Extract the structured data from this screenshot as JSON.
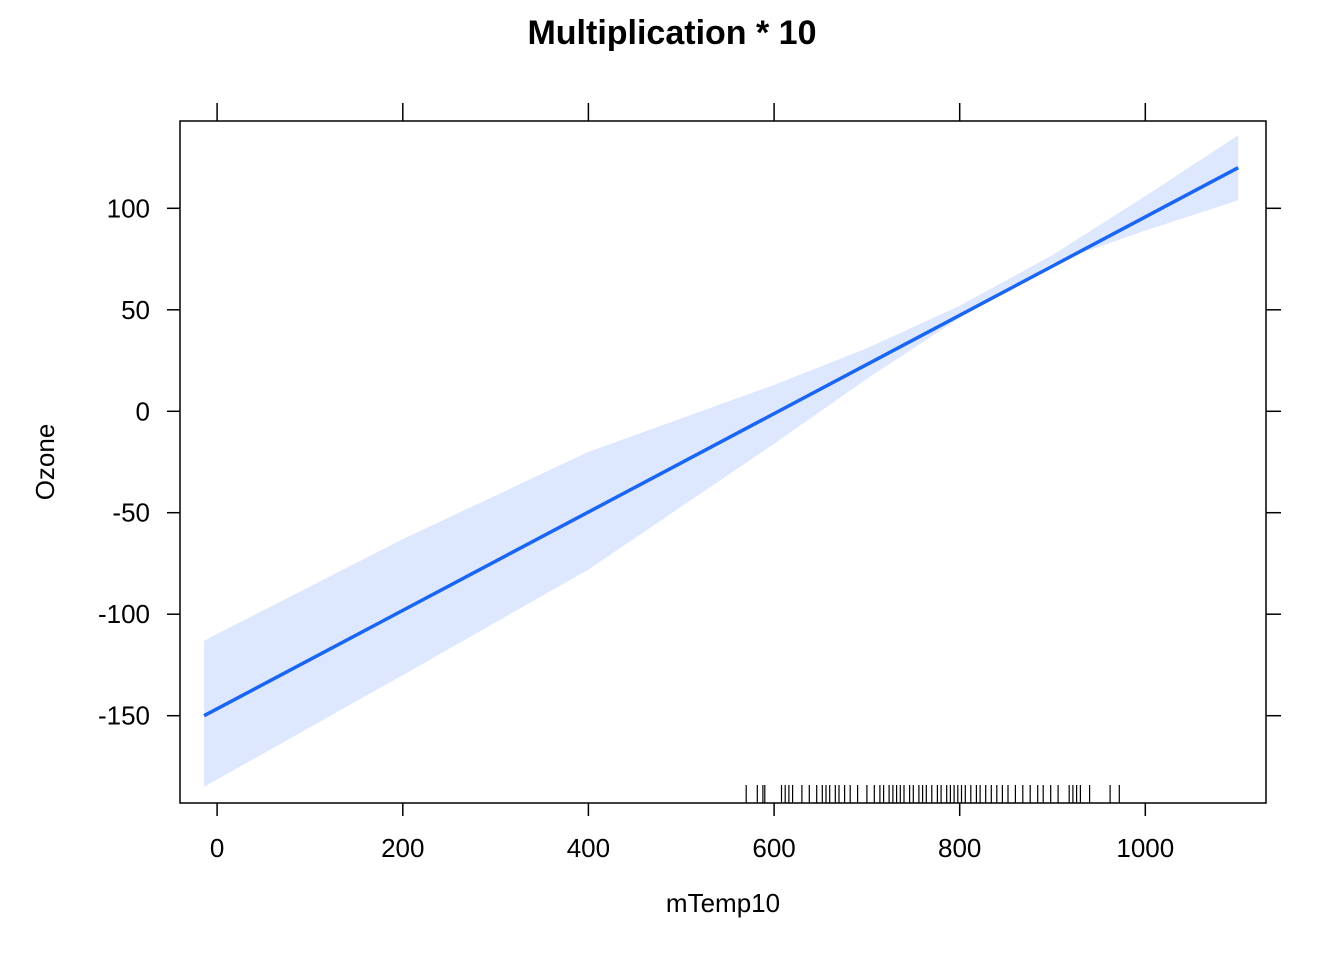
{
  "chart_data": {
    "type": "line",
    "title": "Multiplication * 10",
    "xlabel": "mTemp10",
    "ylabel": "Ozone",
    "xlim": [
      -40,
      1130
    ],
    "ylim": [
      -193,
      143
    ],
    "x_ticks": [
      0,
      200,
      400,
      600,
      800,
      1000
    ],
    "y_ticks": [
      -150,
      -100,
      -50,
      0,
      50,
      100
    ],
    "grid": false,
    "colors": {
      "line": "#1a66f2",
      "band": "#dde7fd",
      "axis": "#000000"
    },
    "series": [
      {
        "x": [
          -14,
          1100
        ],
        "y": [
          -150,
          120
        ]
      }
    ],
    "confidence_band": {
      "x": [
        -14,
        200,
        400,
        600,
        700,
        800,
        900,
        1000,
        1100
      ],
      "lower": [
        -185,
        -130,
        -78,
        -16,
        16,
        46,
        73,
        89,
        104
      ],
      "upper": [
        -113,
        -63,
        -20,
        13,
        31,
        52,
        77,
        106,
        136
      ]
    },
    "rug_x": [
      570,
      582,
      588,
      590,
      608,
      612,
      616,
      620,
      630,
      638,
      646,
      652,
      656,
      660,
      666,
      670,
      676,
      682,
      690,
      700,
      708,
      714,
      718,
      724,
      728,
      732,
      736,
      740,
      746,
      750,
      756,
      760,
      764,
      770,
      776,
      780,
      786,
      790,
      794,
      798,
      802,
      806,
      812,
      818,
      822,
      828,
      834,
      840,
      846,
      852,
      860,
      868,
      876,
      884,
      890,
      898,
      906,
      918,
      922,
      926,
      930,
      940,
      962,
      972
    ]
  }
}
